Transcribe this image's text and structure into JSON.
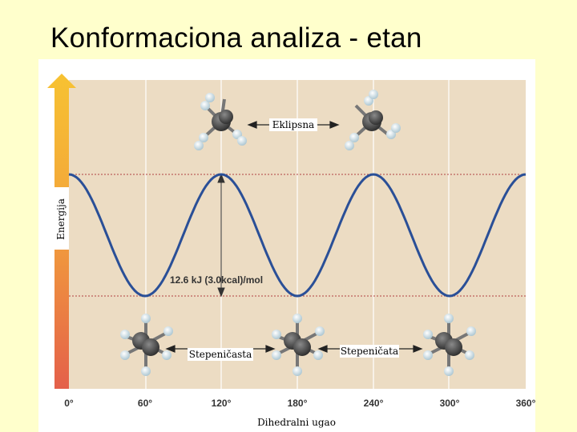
{
  "slide": {
    "title": "Konformaciona analiza - etan"
  },
  "chart_data": {
    "type": "line",
    "title": "",
    "xlabel": "Dihedralni ugao",
    "ylabel": "Energija",
    "x_ticks": [
      "0°",
      "60°",
      "120°",
      "180°",
      "240°",
      "300°",
      "360°"
    ],
    "xlim": [
      0,
      360
    ],
    "series": [
      {
        "x": [
          0,
          60,
          120,
          180,
          240,
          300,
          360
        ],
        "y": [
          0,
          -12.6,
          0,
          -12.6,
          0,
          -12.6,
          0
        ]
      }
    ],
    "annotations": {
      "barrier": "12.6 kJ (3.0kcal)/mol",
      "eclipsed": "Eklipsna",
      "staggered_left": "Stepeničasta",
      "staggered_right": "Stepeničata"
    },
    "grid": true,
    "colors": {
      "curve": "#2a4f97",
      "plot_bg": "#ecdcc3",
      "dotted": "#b04040",
      "grid": "#ffffff"
    }
  }
}
